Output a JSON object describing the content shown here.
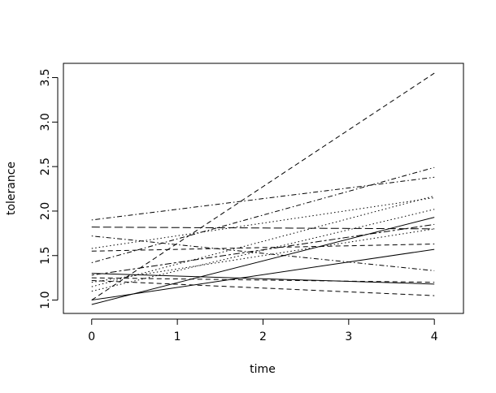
{
  "chart_data": {
    "type": "line",
    "x_label": "time",
    "y_label": "tolerance",
    "x": [
      0,
      4
    ],
    "series": [
      {
        "color": "#000000",
        "dash": "dashed",
        "values": [
          1.0,
          3.55
        ]
      },
      {
        "color": "#000000",
        "dash": "solid",
        "values": [
          0.95,
          1.93
        ]
      },
      {
        "color": "#000000",
        "dash": "solid",
        "values": [
          1.0,
          1.57
        ]
      },
      {
        "color": "#000000",
        "dash": "solid",
        "values": [
          1.3,
          1.18
        ]
      },
      {
        "color": "#000000",
        "dash": "dotdash",
        "values": [
          1.72,
          1.33
        ]
      },
      {
        "color": "#000000",
        "dash": "dotdash",
        "values": [
          1.9,
          2.38
        ]
      },
      {
        "color": "#000000",
        "dash": "dotdash",
        "values": [
          1.42,
          2.49
        ]
      },
      {
        "color": "#000000",
        "dash": "longdash",
        "values": [
          1.82,
          1.8
        ]
      },
      {
        "color": "#000000",
        "dash": "dotted",
        "values": [
          1.58,
          2.15
        ]
      },
      {
        "color": "#000000",
        "dash": "dashed",
        "values": [
          1.55,
          1.63
        ]
      },
      {
        "color": "#000000",
        "dash": "dashed",
        "values": [
          1.25,
          1.2
        ]
      },
      {
        "color": "#000000",
        "dash": "dashed",
        "values": [
          1.22,
          1.05
        ]
      },
      {
        "color": "#000000",
        "dash": "dotted",
        "values": [
          1.15,
          2.17
        ]
      },
      {
        "color": "#000000",
        "dash": "dotted",
        "values": [
          1.1,
          2.02
        ]
      },
      {
        "color": "#000000",
        "dash": "twodash",
        "values": [
          1.28,
          1.85
        ]
      },
      {
        "color": "#000000",
        "dash": "dotted",
        "values": [
          1.2,
          1.8
        ]
      }
    ],
    "xlim": [
      -0.33,
      4.34
    ],
    "ylim": [
      0.85,
      3.66
    ],
    "xticks": [
      0,
      1,
      2,
      3,
      4
    ],
    "yticks": [
      {
        "value": 1,
        "label": "1.0"
      },
      1.5,
      {
        "value": 2,
        "label": "2.0"
      },
      2.5,
      {
        "value": 3,
        "label": "3.0"
      },
      3.5
    ]
  }
}
